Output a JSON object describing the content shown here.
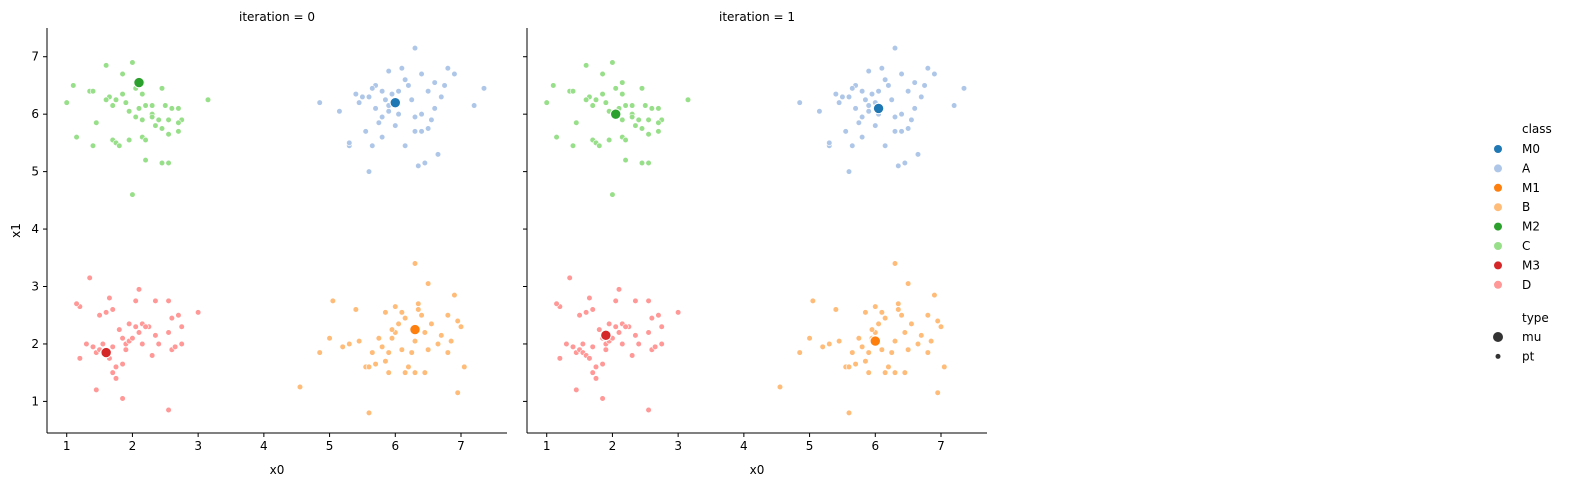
{
  "chart_data": {
    "type": "scatter",
    "facet": "iteration",
    "panels": [
      {
        "title": "iteration = 0"
      },
      {
        "title": "iteration = 1"
      }
    ],
    "xlabel": "x0",
    "ylabel": "x1",
    "xlim": [
      0.7,
      7.7
    ],
    "ylim": [
      0.45,
      7.5
    ],
    "xticks": [
      1,
      2,
      3,
      4,
      5,
      6,
      7
    ],
    "yticks": [
      1,
      2,
      3,
      4,
      5,
      6,
      7
    ],
    "grid": false,
    "legend": {
      "placement": "right",
      "hue_title": "class",
      "size_title": "type",
      "hue": [
        {
          "label": "M0",
          "color": "#1f77b4"
        },
        {
          "label": "A",
          "color": "#aec7e8"
        },
        {
          "label": "M1",
          "color": "#ff7f0e"
        },
        {
          "label": "B",
          "color": "#ffbb78"
        },
        {
          "label": "M2",
          "color": "#2ca02c"
        },
        {
          "label": "C",
          "color": "#98df8a"
        },
        {
          "label": "M3",
          "color": "#d62728"
        },
        {
          "label": "D",
          "color": "#ff9896"
        }
      ],
      "size": [
        {
          "label": "mu"
        },
        {
          "label": "pt"
        }
      ]
    },
    "points": {
      "A": [
        [
          6.0,
          6.2
        ],
        [
          6.3,
          7.15
        ],
        [
          5.9,
          6.05
        ],
        [
          6.1,
          6.8
        ],
        [
          5.5,
          6.3
        ],
        [
          5.7,
          6.5
        ],
        [
          5.8,
          6.4
        ],
        [
          6.4,
          6.7
        ],
        [
          6.8,
          6.8
        ],
        [
          6.9,
          6.7
        ],
        [
          7.35,
          6.45
        ],
        [
          7.2,
          6.15
        ],
        [
          6.6,
          6.55
        ],
        [
          6.5,
          6.4
        ],
        [
          6.6,
          6.1
        ],
        [
          6.7,
          6.3
        ],
        [
          6.3,
          5.95
        ],
        [
          6.2,
          6.5
        ],
        [
          5.6,
          6.3
        ],
        [
          5.4,
          6.35
        ],
        [
          4.85,
          6.2
        ],
        [
          5.15,
          6.05
        ],
        [
          5.7,
          6.1
        ],
        [
          5.9,
          6.15
        ],
        [
          6.05,
          6.0
        ],
        [
          6.15,
          6.6
        ],
        [
          6.4,
          6.0
        ],
        [
          6.55,
          5.9
        ],
        [
          6.5,
          5.75
        ],
        [
          6.4,
          5.7
        ],
        [
          6.3,
          5.7
        ],
        [
          6.0,
          5.8
        ],
        [
          5.8,
          5.95
        ],
        [
          5.75,
          5.85
        ],
        [
          5.55,
          5.7
        ],
        [
          5.3,
          5.45
        ],
        [
          5.3,
          5.5
        ],
        [
          5.65,
          5.45
        ],
        [
          5.6,
          5.0
        ],
        [
          6.15,
          5.45
        ],
        [
          6.35,
          5.1
        ],
        [
          6.45,
          5.15
        ],
        [
          6.65,
          5.3
        ],
        [
          6.75,
          6.5
        ],
        [
          6.05,
          6.4
        ],
        [
          5.95,
          6.35
        ],
        [
          5.85,
          6.25
        ],
        [
          5.45,
          6.2
        ],
        [
          5.65,
          6.45
        ],
        [
          5.8,
          5.6
        ],
        [
          6.25,
          6.25
        ],
        [
          5.9,
          6.75
        ]
      ],
      "B": [
        [
          6.3,
          3.4
        ],
        [
          6.5,
          3.05
        ],
        [
          6.35,
          2.7
        ],
        [
          6.0,
          2.65
        ],
        [
          5.85,
          2.55
        ],
        [
          5.4,
          2.6
        ],
        [
          5.05,
          2.75
        ],
        [
          5.0,
          2.1
        ],
        [
          4.85,
          1.85
        ],
        [
          4.55,
          1.25
        ],
        [
          5.2,
          1.95
        ],
        [
          5.3,
          2.0
        ],
        [
          5.45,
          2.05
        ],
        [
          5.55,
          1.6
        ],
        [
          5.65,
          1.85
        ],
        [
          5.6,
          1.6
        ],
        [
          5.7,
          1.65
        ],
        [
          5.75,
          2.1
        ],
        [
          5.8,
          1.95
        ],
        [
          5.85,
          1.7
        ],
        [
          5.9,
          1.85
        ],
        [
          5.95,
          2.1
        ],
        [
          6.0,
          2.2
        ],
        [
          6.05,
          2.35
        ],
        [
          6.1,
          1.9
        ],
        [
          6.15,
          2.45
        ],
        [
          6.2,
          1.6
        ],
        [
          6.25,
          1.85
        ],
        [
          6.3,
          1.5
        ],
        [
          6.35,
          2.6
        ],
        [
          6.4,
          2.5
        ],
        [
          6.45,
          2.2
        ],
        [
          6.5,
          1.9
        ],
        [
          6.55,
          2.35
        ],
        [
          6.65,
          2.0
        ],
        [
          6.7,
          2.15
        ],
        [
          6.8,
          2.5
        ],
        [
          6.85,
          2.05
        ],
        [
          6.9,
          2.85
        ],
        [
          6.95,
          2.4
        ],
        [
          7.0,
          2.3
        ],
        [
          7.05,
          1.6
        ],
        [
          6.95,
          1.15
        ],
        [
          6.8,
          1.85
        ],
        [
          6.45,
          1.5
        ],
        [
          6.15,
          1.5
        ],
        [
          5.9,
          1.5
        ],
        [
          5.6,
          0.8
        ],
        [
          5.95,
          2.25
        ],
        [
          6.1,
          2.55
        ],
        [
          6.3,
          2.05
        ]
      ],
      "C": [
        [
          2.0,
          6.9
        ],
        [
          1.85,
          6.7
        ],
        [
          1.6,
          6.85
        ],
        [
          1.1,
          6.5
        ],
        [
          1.0,
          6.2
        ],
        [
          1.35,
          6.4
        ],
        [
          1.65,
          6.3
        ],
        [
          1.75,
          6.25
        ],
        [
          1.85,
          6.35
        ],
        [
          2.05,
          6.45
        ],
        [
          2.15,
          6.35
        ],
        [
          2.2,
          6.15
        ],
        [
          2.1,
          6.1
        ],
        [
          2.3,
          6.0
        ],
        [
          2.45,
          6.45
        ],
        [
          2.6,
          6.1
        ],
        [
          2.5,
          6.15
        ],
        [
          2.7,
          6.1
        ],
        [
          2.75,
          5.9
        ],
        [
          2.7,
          5.85
        ],
        [
          3.15,
          6.25
        ],
        [
          2.55,
          5.9
        ],
        [
          2.4,
          5.9
        ],
        [
          2.3,
          5.95
        ],
        [
          2.15,
          5.9
        ],
        [
          2.05,
          5.95
        ],
        [
          1.95,
          6.05
        ],
        [
          1.9,
          6.2
        ],
        [
          1.7,
          6.15
        ],
        [
          1.6,
          6.25
        ],
        [
          1.4,
          6.4
        ],
        [
          1.45,
          5.85
        ],
        [
          1.15,
          5.6
        ],
        [
          1.7,
          5.55
        ],
        [
          1.75,
          5.5
        ],
        [
          1.8,
          5.45
        ],
        [
          1.95,
          5.55
        ],
        [
          2.15,
          5.6
        ],
        [
          2.2,
          5.55
        ],
        [
          2.55,
          5.65
        ],
        [
          2.7,
          5.7
        ],
        [
          2.35,
          5.8
        ],
        [
          2.45,
          5.75
        ],
        [
          2.2,
          5.2
        ],
        [
          2.45,
          5.15
        ],
        [
          2.55,
          5.15
        ],
        [
          1.4,
          5.45
        ],
        [
          2.0,
          4.6
        ],
        [
          2.15,
          6.55
        ],
        [
          2.3,
          6.15
        ]
      ],
      "D": [
        [
          1.35,
          3.15
        ],
        [
          2.1,
          2.95
        ],
        [
          2.05,
          2.75
        ],
        [
          2.35,
          2.75
        ],
        [
          2.55,
          2.75
        ],
        [
          2.7,
          2.5
        ],
        [
          3.0,
          2.55
        ],
        [
          2.75,
          2.3
        ],
        [
          2.6,
          2.45
        ],
        [
          2.55,
          2.2
        ],
        [
          2.35,
          2.15
        ],
        [
          2.25,
          2.3
        ],
        [
          2.15,
          2.35
        ],
        [
          2.05,
          2.3
        ],
        [
          1.95,
          2.35
        ],
        [
          1.8,
          2.25
        ],
        [
          1.7,
          2.6
        ],
        [
          1.6,
          2.55
        ],
        [
          1.5,
          2.5
        ],
        [
          1.65,
          2.8
        ],
        [
          1.2,
          2.65
        ],
        [
          1.15,
          2.7
        ],
        [
          1.3,
          2.0
        ],
        [
          1.4,
          1.95
        ],
        [
          1.45,
          1.85
        ],
        [
          1.5,
          1.9
        ],
        [
          1.55,
          1.85
        ],
        [
          1.6,
          1.8
        ],
        [
          1.65,
          1.75
        ],
        [
          1.7,
          1.5
        ],
        [
          1.75,
          1.6
        ],
        [
          1.85,
          1.65
        ],
        [
          1.9,
          2.0
        ],
        [
          1.95,
          2.05
        ],
        [
          2.0,
          2.1
        ],
        [
          2.1,
          2.2
        ],
        [
          2.2,
          2.3
        ],
        [
          2.3,
          1.8
        ],
        [
          2.6,
          1.9
        ],
        [
          2.65,
          1.95
        ],
        [
          2.75,
          2.0
        ],
        [
          2.4,
          2.0
        ],
        [
          2.15,
          2.0
        ],
        [
          1.85,
          2.1
        ],
        [
          1.7,
          1.95
        ],
        [
          1.2,
          1.75
        ],
        [
          1.45,
          1.2
        ],
        [
          1.75,
          1.4
        ],
        [
          1.85,
          1.05
        ],
        [
          2.55,
          0.85
        ],
        [
          1.55,
          2.0
        ],
        [
          1.9,
          1.9
        ]
      ]
    },
    "means": [
      {
        "iteration": 0,
        "M0": [
          6.0,
          6.2
        ],
        "M1": [
          6.3,
          2.25
        ],
        "M2": [
          2.1,
          6.55
        ],
        "M3": [
          1.6,
          1.85
        ]
      },
      {
        "iteration": 1,
        "M0": [
          6.05,
          6.1
        ],
        "M1": [
          6.0,
          2.05
        ],
        "M2": [
          2.05,
          6.0
        ],
        "M3": [
          1.9,
          2.15
        ]
      }
    ]
  }
}
